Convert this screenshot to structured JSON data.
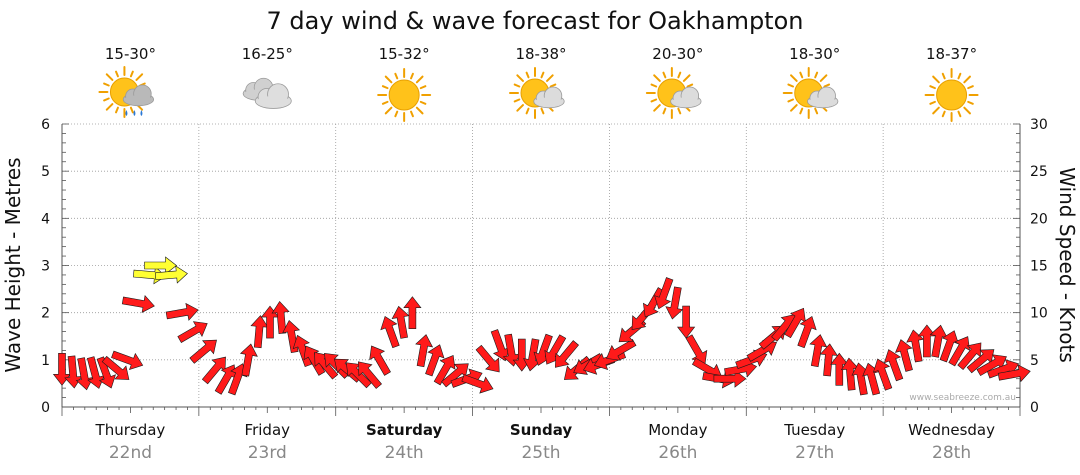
{
  "chart_data": {
    "type": "line",
    "title": "7 day wind & wave forecast for Oakhampton",
    "ylabel_left": "Wave Height - Metres",
    "ylabel_right": "Wind Speed - Knots",
    "ylim_left": [
      0,
      6
    ],
    "ylim_right": [
      0,
      30
    ],
    "yticks_left": [
      "0",
      "1",
      "2",
      "3",
      "4",
      "5",
      "6"
    ],
    "yticks_right": [
      "0",
      "5",
      "10",
      "15",
      "20",
      "25",
      "30"
    ],
    "grid": true,
    "credit": "www.seabreeze.com.au",
    "days": [
      {
        "name": "Thursday",
        "date": "22nd",
        "bold": false,
        "range": "15-30°",
        "icon": "sun-cloud-rain-icon"
      },
      {
        "name": "Friday",
        "date": "23rd",
        "bold": false,
        "range": "16-25°",
        "icon": "cloud-icon"
      },
      {
        "name": "Saturday",
        "date": "24th",
        "bold": true,
        "range": "15-32°",
        "icon": "sun-icon"
      },
      {
        "name": "Sunday",
        "date": "25th",
        "bold": true,
        "range": "18-38°",
        "icon": "sun-cloud-icon"
      },
      {
        "name": "Monday",
        "date": "26th",
        "bold": false,
        "range": "20-30°",
        "icon": "sun-cloud-icon"
      },
      {
        "name": "Tuesday",
        "date": "27th",
        "bold": false,
        "range": "18-30°",
        "icon": "sun-cloud-icon"
      },
      {
        "name": "Wednesday",
        "date": "28th",
        "bold": false,
        "range": "18-37°",
        "icon": "sun-icon"
      }
    ],
    "series": [
      {
        "name": "Wind Speed - Knots",
        "unit": "knots",
        "x_days": [
          0,
          0.08,
          0.16,
          0.24,
          0.32,
          0.4,
          0.48,
          0.56,
          0.64,
          0.72,
          0.8,
          0.88,
          0.96,
          1.04,
          1.12,
          1.2,
          1.28,
          1.36,
          1.44,
          1.52,
          1.6,
          1.68,
          1.76,
          1.84,
          1.92,
          2.0,
          2.08,
          2.16,
          2.24,
          2.32,
          2.4,
          2.48,
          2.56,
          2.64,
          2.72,
          2.8,
          2.88,
          2.96,
          3.04,
          3.12,
          3.2,
          3.28,
          3.36,
          3.44,
          3.52,
          3.6,
          3.68,
          3.76,
          3.84,
          3.92,
          4.0,
          4.08,
          4.16,
          4.24,
          4.32,
          4.4,
          4.48,
          4.56,
          4.64,
          4.72,
          4.8,
          4.88,
          4.96,
          5.04,
          5.12,
          5.2,
          5.28,
          5.36,
          5.44,
          5.52,
          5.6,
          5.68,
          5.76,
          5.84,
          5.92,
          6.0,
          6.08,
          6.16,
          6.24,
          6.32,
          6.4,
          6.48,
          6.56,
          6.64,
          6.72,
          6.8,
          6.88,
          6.96
        ],
        "values": [
          4.0,
          3.7,
          3.5,
          3.6,
          3.6,
          4.0,
          5.0,
          11.0,
          14.0,
          15.0,
          14.0,
          10.0,
          8.0,
          6.0,
          4.0,
          3.0,
          3.0,
          5.0,
          8.0,
          9.0,
          9.5,
          7.5,
          6.0,
          5.0,
          4.5,
          4.5,
          4.0,
          3.5,
          3.5,
          5.0,
          8.0,
          9.0,
          10.0,
          6.0,
          5.0,
          4.0,
          3.5,
          3.0,
          2.5,
          5.0,
          6.5,
          6.0,
          5.5,
          5.5,
          6.0,
          6.0,
          5.5,
          4.0,
          4.5,
          4.5,
          5.0,
          6.0,
          8.0,
          9.5,
          11.0,
          12.0,
          11.0,
          9.0,
          6.0,
          4.0,
          3.0,
          3.0,
          4.0,
          5.0,
          6.0,
          7.5,
          8.5,
          9.0,
          8.0,
          6.0,
          5.0,
          4.0,
          3.5,
          3.0,
          3.0,
          3.5,
          4.5,
          5.5,
          6.5,
          7.0,
          7.0,
          6.5,
          6.0,
          5.5,
          5.0,
          4.5,
          4.0,
          3.5
        ],
        "directions_deg": [
          270,
          265,
          260,
          255,
          250,
          220,
          200,
          190,
          185,
          180,
          175,
          170,
          150,
          140,
          130,
          120,
          110,
          100,
          95,
          90,
          85,
          80,
          70,
          60,
          50,
          45,
          40,
          45,
          50,
          60,
          70,
          80,
          90,
          100,
          110,
          120,
          140,
          160,
          200,
          230,
          250,
          260,
          270,
          280,
          290,
          300,
          310,
          320,
          330,
          340,
          340,
          330,
          320,
          310,
          300,
          290,
          280,
          270,
          240,
          210,
          190,
          180,
          170,
          160,
          150,
          140,
          130,
          120,
          110,
          100,
          95,
          90,
          85,
          80,
          75,
          70,
          70,
          75,
          80,
          90,
          100,
          110,
          120,
          130,
          140,
          150,
          160,
          170
        ],
        "color_bands": [
          {
            "max": 12,
            "color": "#ff1a1a"
          },
          {
            "max": 20,
            "color": "#ffff33"
          }
        ]
      },
      {
        "name": "Wave Height - Metres",
        "unit": "m",
        "values": []
      }
    ]
  }
}
